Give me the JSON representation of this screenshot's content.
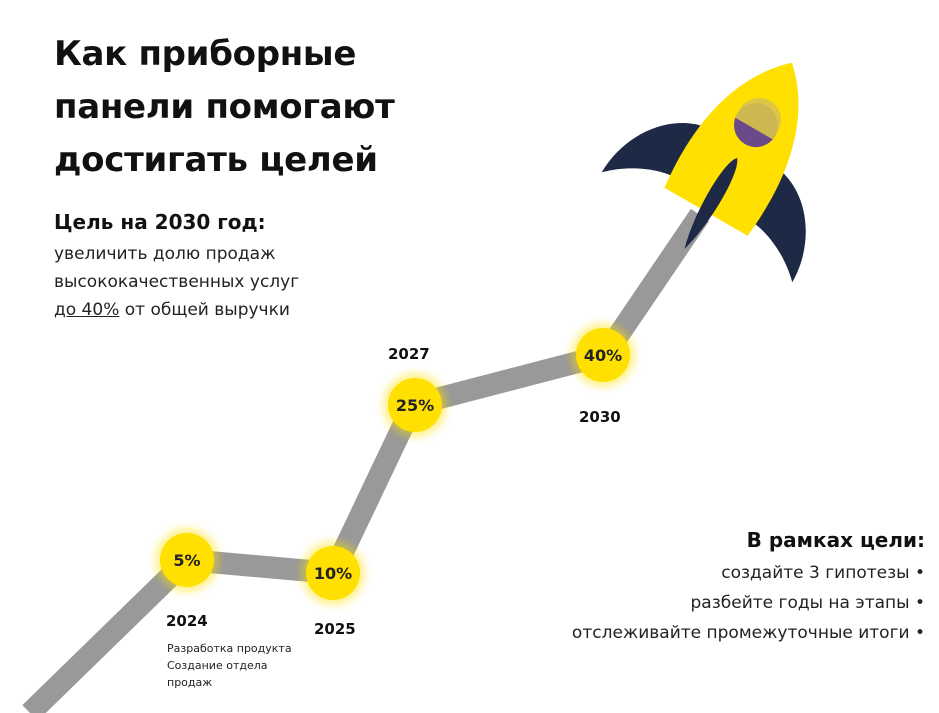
{
  "title": "Как приборные панели помогают достигать целей",
  "goal": {
    "heading": "Цель на 2030 год:",
    "line1": "увеличить долю продаж",
    "line2": "высококачественных услуг",
    "line3_underlined": "до 40%",
    "line3_rest": " от общей выручки"
  },
  "milestones": [
    {
      "year": "2024",
      "value": "5%"
    },
    {
      "year": "2025",
      "value": "10%"
    },
    {
      "year": "2027",
      "value": "25%"
    },
    {
      "year": "2030",
      "value": "40%"
    }
  ],
  "note_2024": [
    "Разработка продукта",
    "Создание отдела",
    "продаж"
  ],
  "scope": {
    "heading": "В рамках цели:",
    "items": [
      "создайте 3 гипотезы •",
      "разбейте годы на этапы •",
      "отслеживайте промежуточные итоги •"
    ]
  },
  "colors": {
    "accent": "#ffe000",
    "path": "#999999",
    "fin": "#1e2a45",
    "window": "#6b4a8a"
  },
  "icons": [
    "rocket-icon"
  ]
}
